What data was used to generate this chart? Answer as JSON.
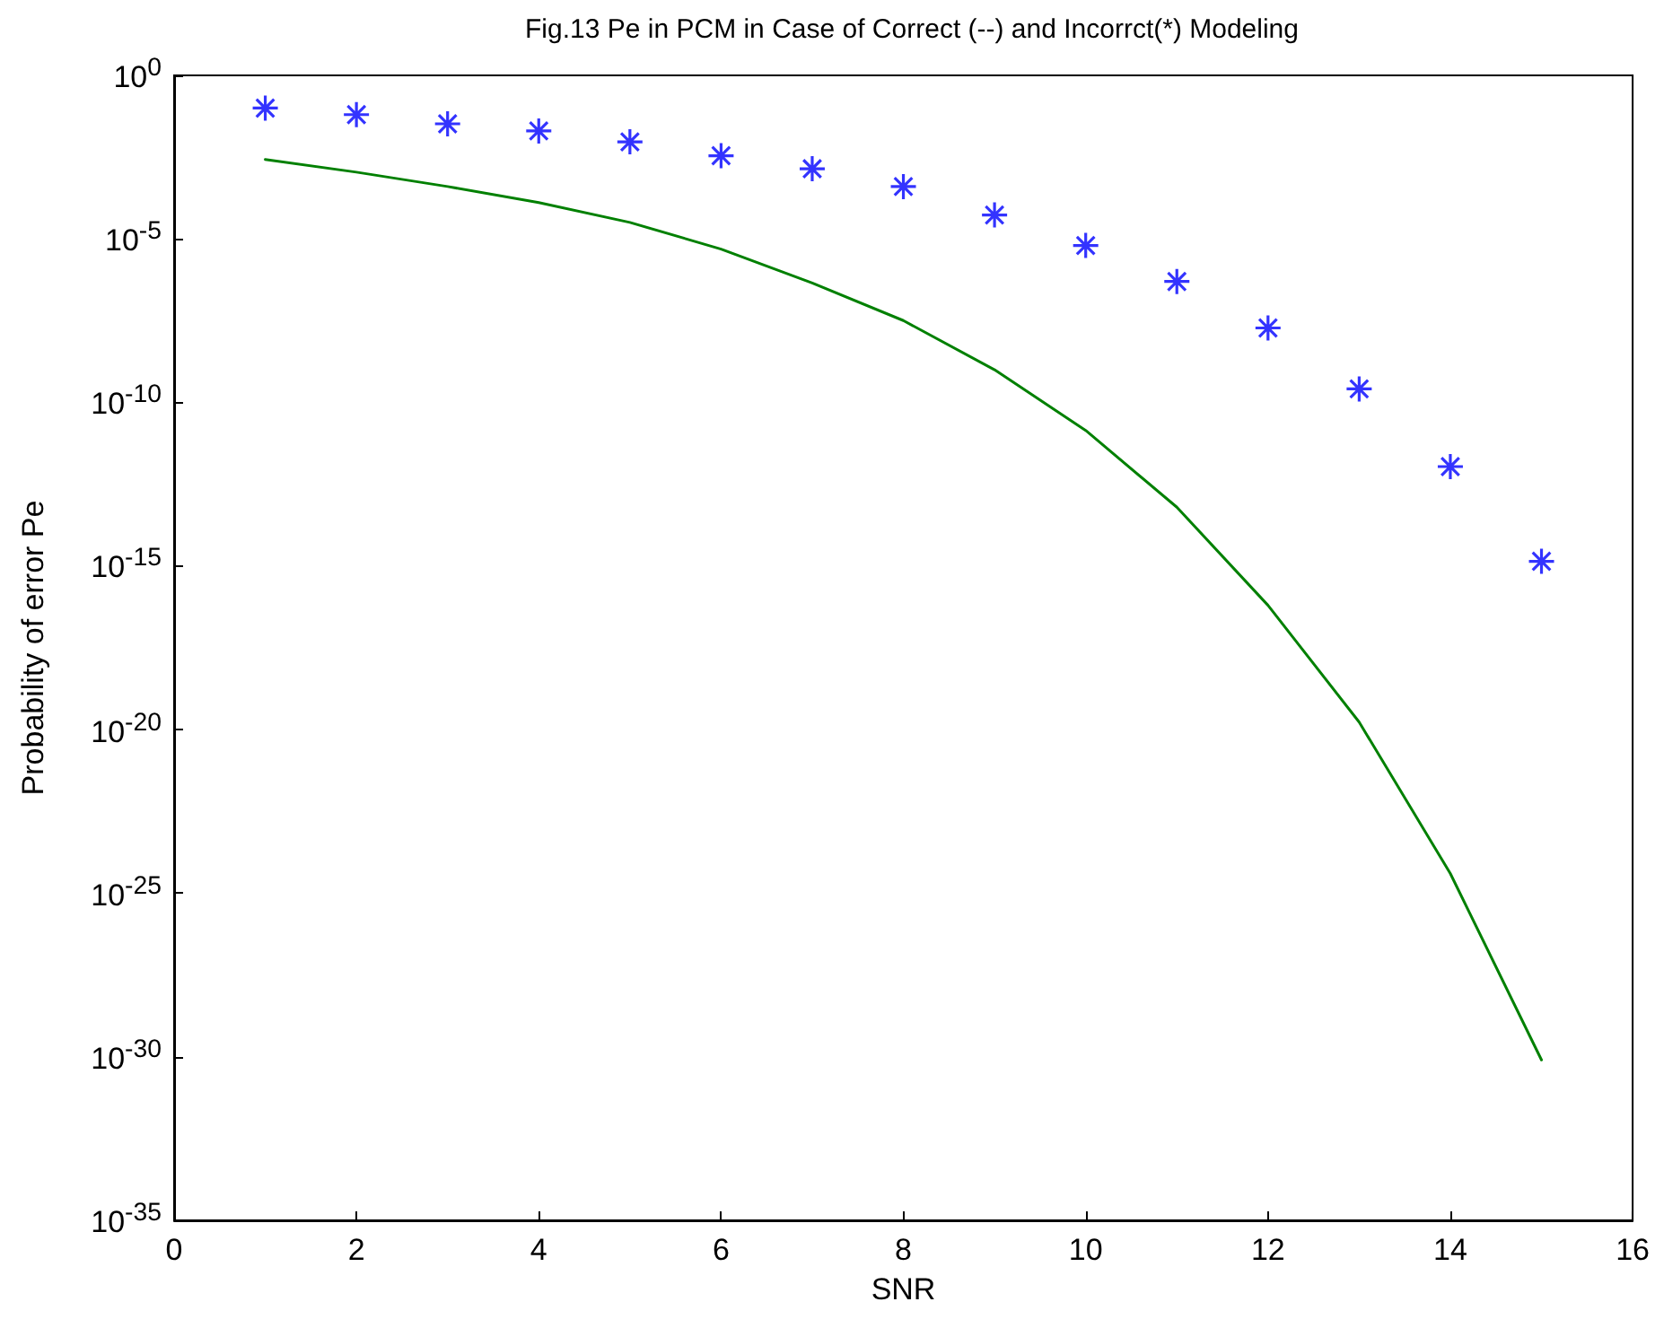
{
  "chart_data": {
    "type": "line",
    "title": "Fig.13 Pe in PCM in Case of Correct (--) and Incorrct(*) Modeling",
    "xlabel": "SNR",
    "ylabel": "Probability of error Pe",
    "log": "y",
    "xlim": [
      0,
      16
    ],
    "xticks": [
      0,
      2,
      4,
      6,
      8,
      10,
      12,
      14,
      16
    ],
    "ylim": [
      1e-35,
      1
    ],
    "yticks": [
      {
        "value": 1e-35,
        "label": "10$^{-35}$"
      },
      {
        "value": 1e-30,
        "label": "10$^{-30}$"
      },
      {
        "value": 1e-25,
        "label": "10$^{-25}$"
      },
      {
        "value": 1e-20,
        "label": "10$^{-20}$"
      },
      {
        "value": 1e-15,
        "label": "10$^{-15}$"
      },
      {
        "value": 1e-10,
        "label": "10$^{-10}$"
      },
      {
        "value": 1e-05,
        "label": "10$^{-5}$"
      },
      {
        "value": 1,
        "label": "10$^{0}$"
      }
    ],
    "x": [
      1,
      2,
      3,
      4,
      5,
      6,
      7,
      8,
      9,
      10,
      11,
      12,
      13,
      14,
      15
    ],
    "grid": false,
    "series": [
      {
        "type": "scatter",
        "color": "#0000ff",
        "marker": "cross",
        "values": [
          0.1,
          0.063,
          0.033,
          0.02,
          0.0093,
          0.0035,
          0.0014,
          0.0004,
          5.4e-05,
          6.3e-06,
          5e-07,
          1.9e-08,
          2.6e-10,
          1.1e-12,
          1.4e-15
        ]
      },
      {
        "color": "#008000",
        "marker": "none",
        "line_style": "solid",
        "values": [
          0.0027,
          0.0011,
          0.0004,
          0.00013,
          3.2e-05,
          4.9e-06,
          4.5e-07,
          3.2e-08,
          1e-09,
          1.4e-11,
          6.3e-14,
          6.3e-17,
          1.7e-20,
          4e-25,
          8e-31
        ]
      }
    ]
  }
}
